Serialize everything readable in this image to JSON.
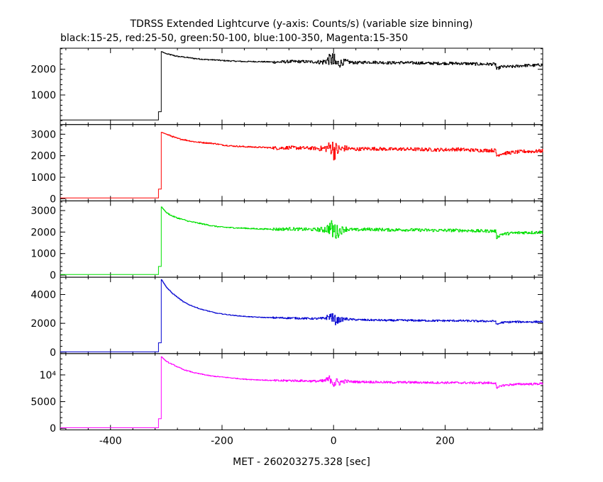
{
  "header": {
    "title": "TDRSS Extended Lightcurve (y-axis: Counts/s) (variable size binning)",
    "subtitle": "black:15-25, red:25-50, green:50-100, blue:100-350, Magenta:15-350"
  },
  "chart_data": {
    "type": "line",
    "xlabel": "MET - 260203275.328 [sec]",
    "ylabel": "Counts/s",
    "xlim": [
      -490,
      375
    ],
    "x_ticks": [
      -400,
      -200,
      0,
      200
    ],
    "x_tick_labels": [
      "-400",
      "-200",
      "0",
      "200"
    ],
    "grid": false,
    "legend": "none",
    "series": [
      {
        "color": "#000000",
        "ylim": [
          -150,
          2820
        ],
        "y_ticks": [
          1000,
          2000
        ],
        "y_tick_labels": [
          "1000",
          "2000"
        ],
        "x": [
          -490,
          -315,
          -315,
          -310,
          -310,
          -305,
          -300,
          -290,
          -280,
          -270,
          -260,
          -250,
          -240,
          -230,
          -220,
          -210,
          -200,
          -180,
          -160,
          -140,
          -120,
          -100,
          -80,
          -60,
          -40,
          -20,
          -5,
          0,
          5,
          20,
          40,
          60,
          80,
          100,
          120,
          140,
          160,
          180,
          200,
          220,
          240,
          260,
          280,
          290,
          292,
          300,
          320,
          340,
          360,
          375
        ],
        "y": [
          30,
          30,
          350,
          350,
          2700,
          2650,
          2600,
          2550,
          2500,
          2480,
          2450,
          2420,
          2400,
          2380,
          2370,
          2360,
          2340,
          2320,
          2300,
          2300,
          2290,
          2280,
          2300,
          2300,
          2290,
          2280,
          2400,
          2250,
          2200,
          2300,
          2250,
          2280,
          2270,
          2250,
          2260,
          2250,
          2240,
          2230,
          2230,
          2230,
          2220,
          2200,
          2200,
          2200,
          2000,
          2100,
          2100,
          2150,
          2150,
          2180
        ]
      },
      {
        "color": "#ff0000",
        "ylim": [
          -100,
          3450
        ],
        "y_ticks": [
          0,
          1000,
          2000,
          3000
        ],
        "y_tick_labels": [
          "0",
          "1000",
          "2000",
          "3000"
        ],
        "x": [
          -490,
          -315,
          -315,
          -310,
          -310,
          -305,
          -300,
          -290,
          -280,
          -270,
          -260,
          -250,
          -240,
          -230,
          -220,
          -210,
          -200,
          -180,
          -160,
          -140,
          -120,
          -100,
          -80,
          -60,
          -40,
          -20,
          -5,
          0,
          5,
          20,
          40,
          60,
          80,
          100,
          120,
          140,
          160,
          180,
          200,
          220,
          240,
          260,
          280,
          290,
          292,
          300,
          320,
          340,
          360,
          375
        ],
        "y": [
          40,
          40,
          450,
          450,
          3100,
          3050,
          3000,
          2900,
          2800,
          2750,
          2700,
          2650,
          2620,
          2600,
          2580,
          2550,
          2500,
          2450,
          2420,
          2400,
          2380,
          2350,
          2380,
          2360,
          2350,
          2330,
          2400,
          2300,
          2250,
          2350,
          2300,
          2330,
          2320,
          2300,
          2310,
          2300,
          2290,
          2280,
          2280,
          2300,
          2270,
          2250,
          2250,
          2250,
          2000,
          2100,
          2150,
          2200,
          2200,
          2230
        ]
      },
      {
        "color": "#00e000",
        "ylim": [
          -100,
          3450
        ],
        "y_ticks": [
          0,
          1000,
          2000,
          3000
        ],
        "y_tick_labels": [
          "0",
          "1000",
          "2000",
          "3000"
        ],
        "x": [
          -490,
          -315,
          -315,
          -310,
          -310,
          -305,
          -300,
          -290,
          -280,
          -270,
          -260,
          -250,
          -240,
          -230,
          -220,
          -210,
          -200,
          -180,
          -160,
          -140,
          -120,
          -100,
          -80,
          -60,
          -40,
          -20,
          -5,
          0,
          5,
          20,
          40,
          60,
          80,
          100,
          120,
          140,
          160,
          180,
          200,
          220,
          240,
          260,
          280,
          290,
          292,
          300,
          320,
          340,
          360,
          375
        ],
        "y": [
          30,
          30,
          400,
          400,
          3200,
          3050,
          2900,
          2750,
          2650,
          2580,
          2500,
          2450,
          2400,
          2350,
          2300,
          2260,
          2230,
          2200,
          2180,
          2150,
          2140,
          2130,
          2150,
          2130,
          2120,
          2110,
          2200,
          2050,
          2000,
          2150,
          2100,
          2130,
          2120,
          2100,
          2110,
          2100,
          2090,
          2080,
          2080,
          2080,
          2070,
          2050,
          2050,
          2050,
          1750,
          1900,
          1950,
          1980,
          1980,
          2000
        ]
      },
      {
        "color": "#0000d0",
        "ylim": [
          -100,
          5200
        ],
        "y_ticks": [
          0,
          2000,
          4000
        ],
        "y_tick_labels": [
          "0",
          "2000",
          "4000"
        ],
        "x": [
          -490,
          -315,
          -315,
          -310,
          -310,
          -305,
          -300,
          -290,
          -280,
          -270,
          -260,
          -250,
          -240,
          -230,
          -220,
          -210,
          -200,
          -180,
          -160,
          -140,
          -120,
          -100,
          -80,
          -60,
          -40,
          -20,
          -5,
          0,
          5,
          20,
          40,
          60,
          80,
          100,
          120,
          140,
          160,
          180,
          200,
          220,
          240,
          260,
          280,
          290,
          292,
          300,
          320,
          340,
          360,
          375
        ],
        "y": [
          20,
          20,
          650,
          650,
          5100,
          4800,
          4500,
          4100,
          3800,
          3500,
          3300,
          3150,
          3000,
          2900,
          2800,
          2700,
          2650,
          2550,
          2480,
          2430,
          2400,
          2380,
          2370,
          2350,
          2330,
          2320,
          2500,
          2250,
          2200,
          2300,
          2250,
          2230,
          2220,
          2200,
          2210,
          2200,
          2190,
          2180,
          2180,
          2180,
          2170,
          2150,
          2150,
          2150,
          1900,
          2050,
          2100,
          2100,
          2100,
          2120
        ]
      },
      {
        "color": "#ff00ff",
        "ylim": [
          -300,
          14000
        ],
        "y_ticks": [
          0,
          5000,
          10000
        ],
        "y_tick_labels": [
          "0",
          "5000",
          "10⁴"
        ],
        "x": [
          -490,
          -315,
          -315,
          -310,
          -310,
          -305,
          -300,
          -290,
          -280,
          -270,
          -260,
          -250,
          -240,
          -230,
          -220,
          -210,
          -200,
          -180,
          -160,
          -140,
          -120,
          -100,
          -80,
          -60,
          -40,
          -20,
          -5,
          0,
          5,
          20,
          40,
          60,
          80,
          100,
          120,
          140,
          160,
          180,
          200,
          220,
          240,
          260,
          280,
          290,
          292,
          300,
          320,
          340,
          360,
          375
        ],
        "y": [
          100,
          100,
          1800,
          1800,
          13500,
          13000,
          12500,
          12000,
          11500,
          11000,
          10700,
          10400,
          10200,
          10000,
          9800,
          9700,
          9600,
          9400,
          9200,
          9100,
          9000,
          8900,
          8950,
          8900,
          8850,
          8800,
          9300,
          8700,
          8500,
          8800,
          8700,
          8700,
          8650,
          8600,
          8620,
          8600,
          8580,
          8550,
          8550,
          8540,
          8520,
          8500,
          8500,
          8500,
          7400,
          8000,
          8200,
          8300,
          8300,
          8400
        ]
      }
    ],
    "burst_noise": {
      "x_start": -110,
      "x_end": 130,
      "peak_x": 0,
      "peak_amplitude": [
        700,
        900,
        950,
        700,
        2400
      ],
      "base_amplitude": [
        70,
        100,
        90,
        80,
        250
      ]
    }
  }
}
